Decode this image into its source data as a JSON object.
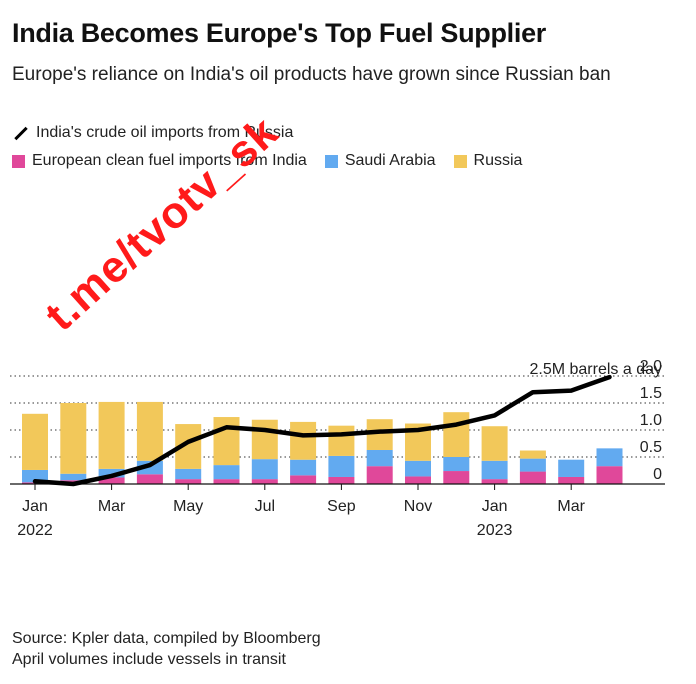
{
  "title": "India Becomes Europe's Top Fuel Supplier",
  "subtitle": "Europe's reliance on India's oil products have grown since Russian ban",
  "watermark": "t.me/tvotv_sk",
  "source_line1": "Source: Kpler data, compiled by Bloomberg",
  "source_line2": "April volumes include vessels in transit",
  "colors": {
    "india": "#e0489a",
    "saudi": "#62aaf0",
    "russia": "#f2c85a",
    "line": "#000000",
    "grid": "#333333"
  },
  "chart_data": {
    "type": "bar",
    "stacked": true,
    "unit_label": "2.5M barrels a day",
    "ylim": [
      0,
      2.5
    ],
    "yticks": [
      "0",
      "0.5",
      "1.0",
      "1.5",
      "2.0"
    ],
    "ytick_values": [
      0,
      0.5,
      1.0,
      1.5,
      2.0
    ],
    "categories": [
      "Jan 2022",
      "Feb 2022",
      "Mar 2022",
      "Apr 2022",
      "May 2022",
      "Jun 2022",
      "Jul 2022",
      "Aug 2022",
      "Sep 2022",
      "Oct 2022",
      "Nov 2022",
      "Dec 2022",
      "Jan 2023",
      "Feb 2023",
      "Mar 2023",
      "Apr 2023"
    ],
    "xtick_labels": [
      {
        "index": 0,
        "line1": "Jan",
        "line2": "2022"
      },
      {
        "index": 2,
        "line1": "Mar",
        "line2": ""
      },
      {
        "index": 4,
        "line1": "May",
        "line2": ""
      },
      {
        "index": 6,
        "line1": "Jul",
        "line2": ""
      },
      {
        "index": 8,
        "line1": "Sep",
        "line2": ""
      },
      {
        "index": 10,
        "line1": "Nov",
        "line2": ""
      },
      {
        "index": 12,
        "line1": "Jan",
        "line2": "2023"
      },
      {
        "index": 14,
        "line1": "Mar",
        "line2": ""
      }
    ],
    "series": [
      {
        "name": "European clean fuel imports from India",
        "color_key": "india",
        "values": [
          0.03,
          0.07,
          0.12,
          0.18,
          0.09,
          0.09,
          0.09,
          0.16,
          0.13,
          0.33,
          0.14,
          0.24,
          0.09,
          0.23,
          0.13,
          0.33
        ]
      },
      {
        "name": "Saudi Arabia",
        "color_key": "saudi",
        "values": [
          0.23,
          0.12,
          0.16,
          0.25,
          0.19,
          0.26,
          0.37,
          0.29,
          0.39,
          0.3,
          0.29,
          0.26,
          0.34,
          0.24,
          0.32,
          0.33
        ]
      },
      {
        "name": "Russia",
        "color_key": "russia",
        "values": [
          1.04,
          1.31,
          1.24,
          1.09,
          0.83,
          0.89,
          0.73,
          0.7,
          0.56,
          0.57,
          0.69,
          0.83,
          0.64,
          0.15,
          0.0,
          0.0
        ]
      }
    ],
    "line_series": {
      "name": "India's crude oil imports from Russia",
      "values": [
        0.05,
        0.0,
        0.15,
        0.35,
        0.78,
        1.05,
        1.0,
        0.9,
        0.92,
        0.97,
        1.0,
        1.1,
        1.27,
        1.7,
        1.73,
        1.98
      ]
    }
  }
}
